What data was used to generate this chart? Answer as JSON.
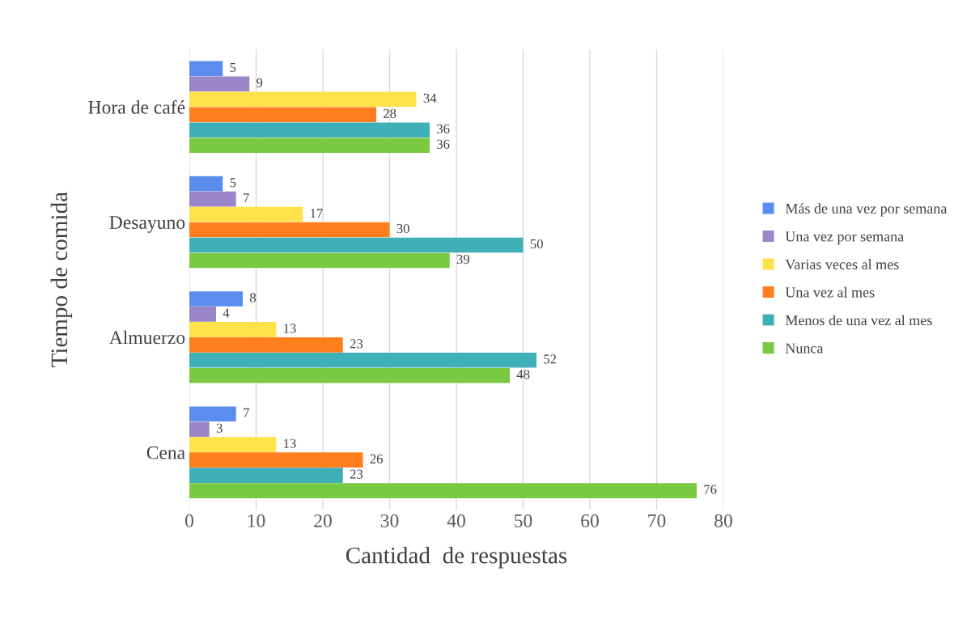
{
  "chart_data": {
    "type": "bar",
    "orientation": "horizontal",
    "xlabel": "Cantidad  de respuestas",
    "ylabel": "Tiempo de comida",
    "categories": [
      "Hora de café",
      "Desayuno",
      "Almuerzo",
      "Cena"
    ],
    "series": [
      {
        "name": "Más de una vez por semana",
        "color": "#5b8def",
        "values": [
          5,
          5,
          8,
          7
        ]
      },
      {
        "name": "Una vez por semana",
        "color": "#9b86c9",
        "values": [
          9,
          7,
          4,
          3
        ]
      },
      {
        "name": "Varias veces al mes",
        "color": "#ffe14a",
        "values": [
          34,
          17,
          13,
          13
        ]
      },
      {
        "name": "Una vez al mes",
        "color": "#ff7f1e",
        "values": [
          28,
          30,
          23,
          26
        ]
      },
      {
        "name": "Menos de una vez al mes",
        "color": "#3fb0b8",
        "values": [
          36,
          50,
          52,
          23
        ]
      },
      {
        "name": "Nunca",
        "color": "#7ac943",
        "values": [
          36,
          39,
          48,
          76
        ]
      }
    ],
    "xlim": [
      0,
      80
    ],
    "xticks": [
      0,
      10,
      20,
      30,
      40,
      50,
      60,
      70,
      80
    ],
    "grid": "x",
    "legend": "right",
    "data_labels": true
  }
}
